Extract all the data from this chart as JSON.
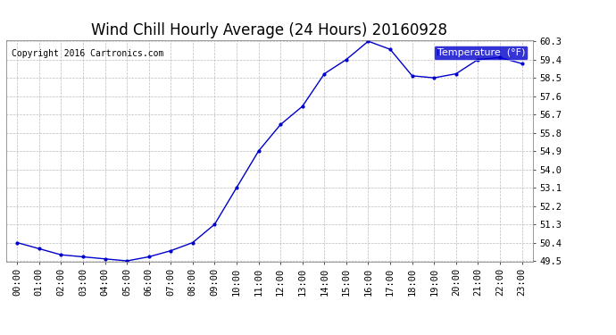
{
  "title": "Wind Chill Hourly Average (24 Hours) 20160928",
  "copyright": "Copyright 2016 Cartronics.com",
  "legend_label": "Temperature  (°F)",
  "x_labels": [
    "00:00",
    "01:00",
    "02:00",
    "03:00",
    "04:00",
    "05:00",
    "06:00",
    "07:00",
    "08:00",
    "09:00",
    "10:00",
    "11:00",
    "12:00",
    "13:00",
    "14:00",
    "15:00",
    "16:00",
    "17:00",
    "18:00",
    "19:00",
    "20:00",
    "21:00",
    "22:00",
    "23:00"
  ],
  "y_values": [
    50.4,
    50.1,
    49.8,
    49.7,
    49.6,
    49.5,
    49.7,
    50.0,
    50.4,
    51.3,
    53.1,
    54.9,
    56.2,
    57.1,
    58.7,
    59.4,
    60.3,
    59.9,
    58.6,
    58.5,
    58.7,
    59.4,
    59.5,
    59.2
  ],
  "ylim_min": 49.5,
  "ylim_max": 60.3,
  "yticks": [
    49.5,
    50.4,
    51.3,
    52.2,
    53.1,
    54.0,
    54.9,
    55.8,
    56.7,
    57.6,
    58.5,
    59.4,
    60.3
  ],
  "line_color": "#0000cc",
  "marker": ".",
  "marker_size": 4,
  "bg_color": "#ffffff",
  "plot_bg_color": "#ffffff",
  "grid_color": "#bbbbbb",
  "title_fontsize": 12,
  "copyright_fontsize": 7,
  "tick_fontsize": 7.5,
  "legend_bg_color": "#0000cc",
  "legend_text_color": "#ffffff",
  "legend_fontsize": 8
}
